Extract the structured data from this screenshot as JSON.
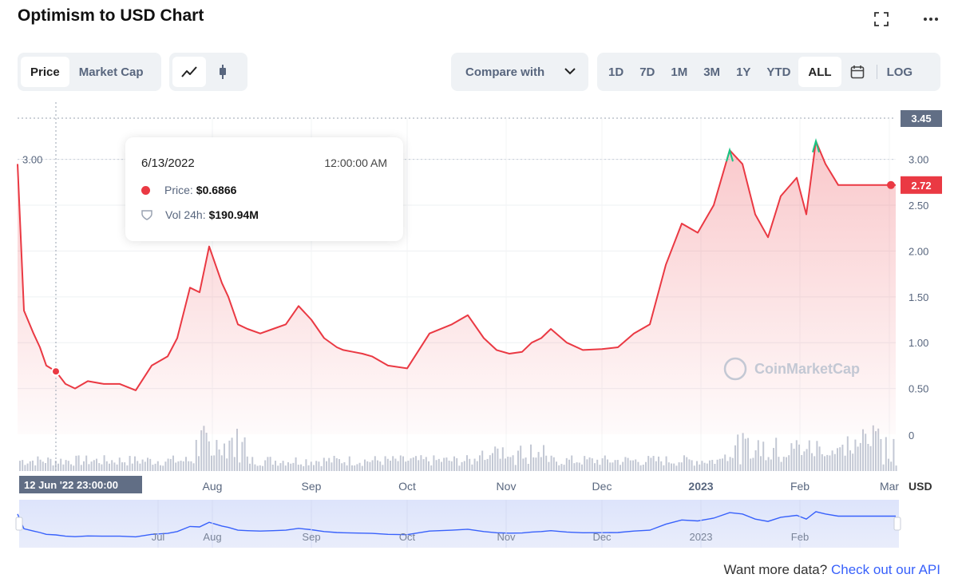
{
  "header": {
    "title": "Optimism to USD Chart",
    "fullscreen_icon": "expand-icon",
    "more_icon": "more-horizontal-icon"
  },
  "toolbar": {
    "metric_tabs": [
      "Price",
      "Market Cap"
    ],
    "active_metric": "Price",
    "chart_type_icons": [
      "line-chart-icon",
      "candlestick-icon"
    ],
    "compare_label": "Compare with",
    "ranges": [
      "1D",
      "7D",
      "1M",
      "3M",
      "1Y",
      "YTD",
      "ALL"
    ],
    "active_range": "ALL",
    "calendar_icon": "calendar-icon",
    "log_label": "LOG"
  },
  "tooltip": {
    "date": "6/13/2022",
    "time": "12:00:00 AM",
    "price_label": "Price:",
    "price_value": "$0.6866",
    "vol_label": "Vol 24h:",
    "vol_value": "$190.94M"
  },
  "colors": {
    "price_line": "#ea3943",
    "up_segment": "#16c784",
    "navigator_line": "#3861fb",
    "volume_bar": "#c3c8d4"
  },
  "chart_data": {
    "type": "line",
    "x": [
      "2022-06-01",
      "2022-06-03",
      "2022-06-06",
      "2022-06-08",
      "2022-06-10",
      "2022-06-13",
      "2022-06-16",
      "2022-06-19",
      "2022-06-23",
      "2022-06-28",
      "2022-07-03",
      "2022-07-08",
      "2022-07-13",
      "2022-07-18",
      "2022-07-21",
      "2022-07-25",
      "2022-07-28",
      "2022-07-31",
      "2022-08-02",
      "2022-08-04",
      "2022-08-06",
      "2022-08-09",
      "2022-08-12",
      "2022-08-16",
      "2022-08-20",
      "2022-08-24",
      "2022-08-28",
      "2022-09-01",
      "2022-09-05",
      "2022-09-09",
      "2022-09-11",
      "2022-09-14",
      "2022-09-17",
      "2022-09-20",
      "2022-09-25",
      "2022-10-01",
      "2022-10-08",
      "2022-10-15",
      "2022-10-20",
      "2022-10-25",
      "2022-10-29",
      "2022-11-02",
      "2022-11-06",
      "2022-11-09",
      "2022-11-12",
      "2022-11-15",
      "2022-11-20",
      "2022-11-25",
      "2022-12-01",
      "2022-12-06",
      "2022-12-11",
      "2022-12-16",
      "2022-12-21",
      "2022-12-26",
      "2022-12-31",
      "2023-01-05",
      "2023-01-10",
      "2023-01-14",
      "2023-01-18",
      "2023-01-22",
      "2023-01-26",
      "2023-01-31",
      "2023-02-03",
      "2023-02-06",
      "2023-02-09",
      "2023-02-13",
      "2023-02-17",
      "2023-02-20",
      "2023-02-24",
      "2023-02-27",
      "2023-03-01",
      "2023-03-03"
    ],
    "values": [
      2.95,
      1.35,
      1.1,
      0.95,
      0.75,
      0.6866,
      0.55,
      0.5,
      0.58,
      0.55,
      0.55,
      0.48,
      0.75,
      0.85,
      1.05,
      1.6,
      1.55,
      2.05,
      1.85,
      1.65,
      1.5,
      1.2,
      1.15,
      1.1,
      1.15,
      1.2,
      1.4,
      1.25,
      1.05,
      0.95,
      0.92,
      0.9,
      0.88,
      0.85,
      0.75,
      0.72,
      1.1,
      1.2,
      1.3,
      1.05,
      0.92,
      0.88,
      0.9,
      1.0,
      1.05,
      1.15,
      1.0,
      0.92,
      0.93,
      0.95,
      1.1,
      1.2,
      1.85,
      2.3,
      2.2,
      2.5,
      3.1,
      2.95,
      2.4,
      2.15,
      2.6,
      2.8,
      2.4,
      3.2,
      2.95,
      2.72,
      2.72,
      2.72,
      2.72,
      2.72,
      2.72,
      2.72
    ],
    "ylim": [
      0.0,
      3.45
    ],
    "y_ticks": [
      "0.50",
      "1.00",
      "1.50",
      "2.00",
      "2.50",
      "3.00"
    ],
    "x_ticks": [
      "Aug",
      "Sep",
      "Oct",
      "Nov",
      "Dec",
      "2023",
      "Feb",
      "Mar"
    ],
    "nav_ticks": [
      "Jul",
      "Aug",
      "Sep",
      "Oct",
      "Nov",
      "Dec",
      "2023",
      "Feb"
    ],
    "volume_axis_label": "0",
    "current_price": "2.72",
    "high_label": "3.45",
    "left_reference_label": "3.00",
    "crosshair_date": "12 Jun '22",
    "crosshair_time": "23:00:00",
    "unit": "USD",
    "watermark": "CoinMarketCap",
    "grid": true
  },
  "footer": {
    "text": "Want more data?",
    "link": "Check out our API"
  }
}
